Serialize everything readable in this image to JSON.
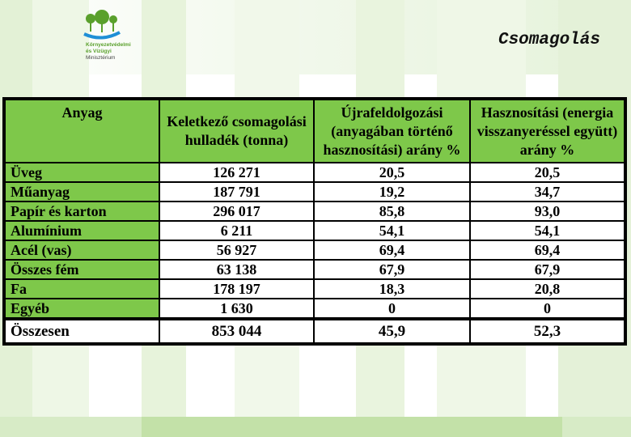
{
  "logo": {
    "line1": "Környezetvédelmi",
    "line2": "és Vízügyi",
    "line3": "Minisztérium",
    "colors": {
      "leaf": "#5aa02c",
      "water": "#1e8fd6"
    }
  },
  "slide_title": "Csomagolás",
  "table": {
    "headers": [
      "Anyag",
      "Keletkező csomagolási hulladék (tonna)",
      "Újrafeldolgozási (anyagában történő hasznosítási) arány %",
      "Hasznosítási (energia visszanyeréssel együtt) arány %"
    ],
    "rows": [
      {
        "material": "Üveg",
        "waste": "126 271",
        "recycling": "20,5",
        "recovery": "20,5"
      },
      {
        "material": "Műanyag",
        "waste": "187 791",
        "recycling": "19,2",
        "recovery": "34,7"
      },
      {
        "material": "Papír és karton",
        "waste": "296 017",
        "recycling": "85,8",
        "recovery": "93,0"
      },
      {
        "material": "Alumínium",
        "waste": "6 211",
        "recycling": "54,1",
        "recovery": "54,1"
      },
      {
        "material": "Acél (vas)",
        "waste": "56 927",
        "recycling": "69,4",
        "recovery": "69,4"
      },
      {
        "material": "Összes fém",
        "waste": "63 138",
        "recycling": "67,9",
        "recovery": "67,9"
      },
      {
        "material": "Fa",
        "waste": "178 197",
        "recycling": "18,3",
        "recovery": "20,8"
      },
      {
        "material": "Egyéb",
        "waste": "1 630",
        "recycling": "0",
        "recovery": "0"
      }
    ],
    "total": {
      "material": "Összesen",
      "waste": "853 044",
      "recycling": "45,9",
      "recovery": "52,3"
    },
    "colors": {
      "header_bg": "#7ec84a",
      "cell_bg": "#ffffff"
    }
  }
}
